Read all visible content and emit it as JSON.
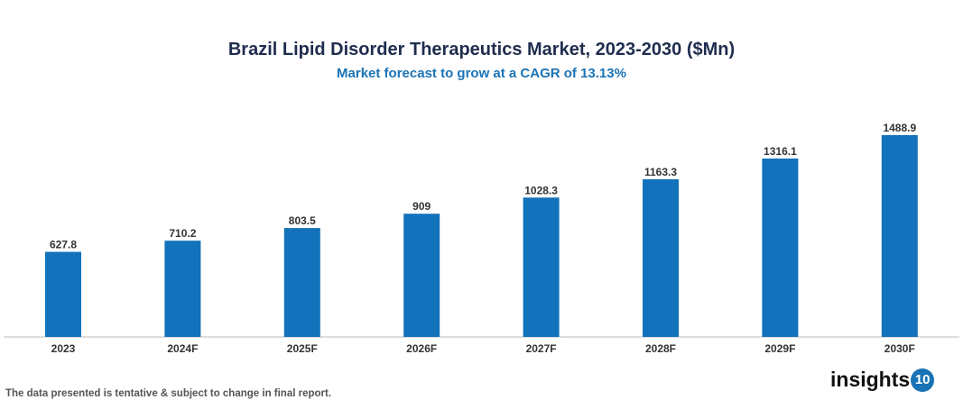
{
  "chart_data": {
    "type": "bar",
    "title": "Brazil Lipid Disorder Therapeutics Market, 2023-2030 ($Mn)",
    "subtitle": "Market forecast to grow at a CAGR of 13.13%",
    "categories": [
      "2023",
      "2024F",
      "2025F",
      "2026F",
      "2027F",
      "2028F",
      "2029F",
      "2030F"
    ],
    "values": [
      627.8,
      710.2,
      803.5,
      909,
      1028.3,
      1163.3,
      1316.1,
      1488.9
    ],
    "value_labels": [
      "627.8",
      "710.2",
      "803.5",
      "909",
      "1028.3",
      "1163.3",
      "1316.1",
      "1488.9"
    ],
    "xlabel": "",
    "ylabel": "",
    "ylim": [
      0,
      1488.9
    ],
    "grid": false,
    "bar_color": "#1272bb"
  },
  "footnote": "The data presented is tentative & subject to change in final report.",
  "logo": {
    "text": "insights",
    "badge": "10"
  }
}
